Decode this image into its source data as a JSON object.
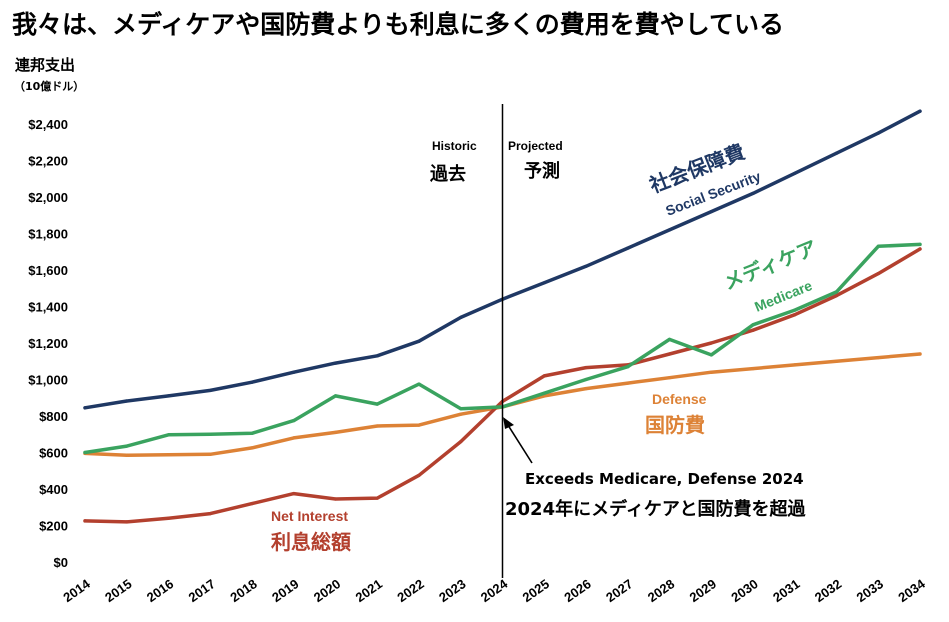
{
  "title": "我々は、メディケアや国防費よりも利息に多くの費用を費やしている",
  "y_axis": {
    "label": "連邦支出",
    "unit": "（10億ドル）"
  },
  "regions": {
    "historic_en": "Historic",
    "historic_ja": "過去",
    "projected_en": "Projected",
    "projected_ja": "予測",
    "divider_year": 2024
  },
  "series_labels": {
    "ss_ja": "社会保障費",
    "ss_en": "Social Security",
    "medicare_ja": "メディケア",
    "medicare_en": "Medicare",
    "defense_en": "Defense",
    "defense_ja": "国防費",
    "interest_en": "Net Interest",
    "interest_ja": "利息総額"
  },
  "annotation": {
    "en": "Exceeds Medicare, Defense 2024",
    "ja": "2024年にメディケアと国防費を超過"
  },
  "colors": {
    "social_security": "#1f3864",
    "medicare": "#3aa35f",
    "defense": "#dd8236",
    "net_interest": "#b3402e"
  },
  "chart_data": {
    "type": "line",
    "x": [
      2014,
      2015,
      2016,
      2017,
      2018,
      2019,
      2020,
      2021,
      2022,
      2023,
      2024,
      2025,
      2026,
      2027,
      2028,
      2029,
      2030,
      2031,
      2032,
      2033,
      2034
    ],
    "y_ticks": [
      "$0",
      "$200",
      "$400",
      "$600",
      "$800",
      "$1,000",
      "$1,200",
      "$1,400",
      "$1,600",
      "$1,800",
      "$2,000",
      "$2,200",
      "$2,400"
    ],
    "ylim": [
      0,
      2400
    ],
    "series": [
      {
        "name": "Social Security",
        "color_key": "social_security",
        "values": [
          845,
          882,
          910,
          940,
          985,
          1040,
          1090,
          1130,
          1210,
          1340,
          1440,
          1530,
          1620,
          1720,
          1820,
          1920,
          2020,
          2130,
          2240,
          2350,
          2470
        ]
      },
      {
        "name": "Medicare",
        "color_key": "medicare",
        "values": [
          600,
          635,
          697,
          700,
          705,
          775,
          910,
          865,
          975,
          840,
          850,
          925,
          1000,
          1070,
          1220,
          1135,
          1300,
          1380,
          1480,
          1730,
          1740
        ]
      },
      {
        "name": "Defense",
        "color_key": "defense",
        "values": [
          595,
          585,
          588,
          590,
          625,
          680,
          710,
          745,
          750,
          810,
          850,
          910,
          950,
          980,
          1010,
          1040,
          1060,
          1080,
          1100,
          1120,
          1140
        ]
      },
      {
        "name": "Net Interest",
        "color_key": "net_interest",
        "values": [
          225,
          220,
          240,
          265,
          320,
          375,
          345,
          350,
          475,
          660,
          880,
          1020,
          1065,
          1080,
          1140,
          1200,
          1270,
          1355,
          1460,
          1580,
          1715
        ]
      }
    ]
  }
}
